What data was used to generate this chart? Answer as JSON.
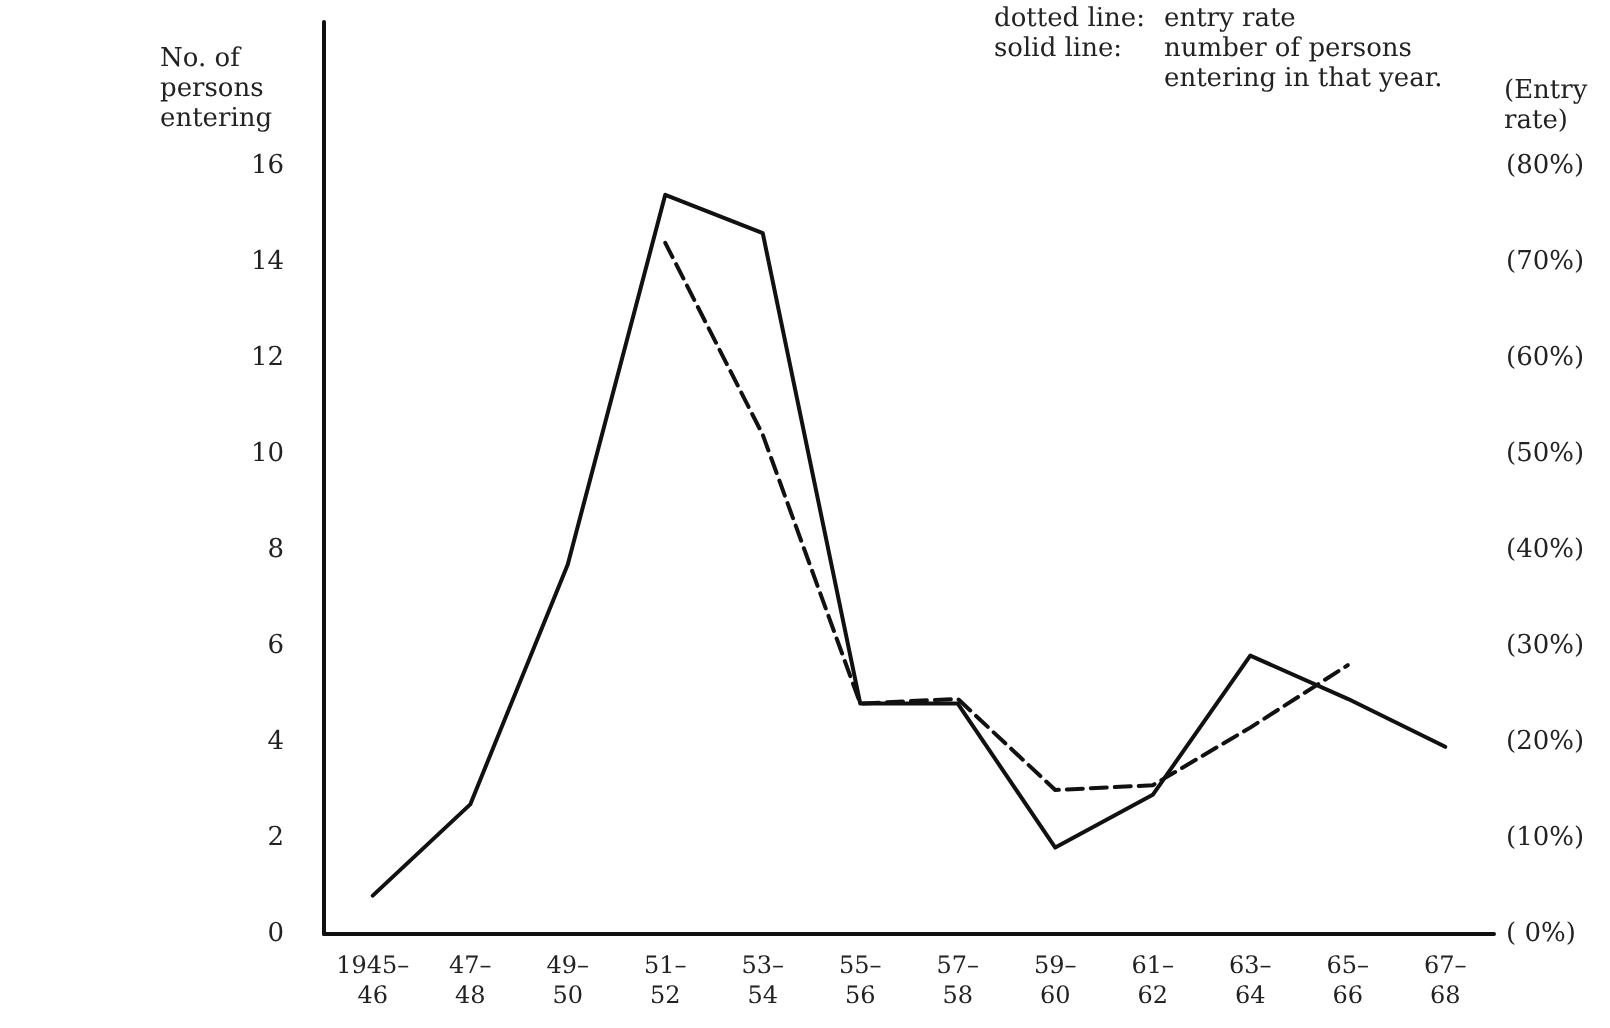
{
  "chart_data": {
    "type": "line",
    "xlabel": null,
    "ylabel": "No. of persons entering",
    "y2label": "(Entry rate)",
    "annotations": [
      "dotted line: entry rate",
      "solid line: number of persons entering in that year."
    ],
    "categories": [
      "1945–46",
      "47–48",
      "49–50",
      "51–52",
      "53–54",
      "55–56",
      "57–58",
      "59–60",
      "61–62",
      "63–64",
      "65–66",
      "67–68"
    ],
    "ylim": [
      0,
      19
    ],
    "yticks": [
      0,
      2,
      4,
      6,
      8,
      10,
      12,
      14,
      16
    ],
    "y2lim": [
      0,
      95
    ],
    "y2ticks": [
      {
        "value": 0,
        "label": "( 0%)"
      },
      {
        "value": 10,
        "label": "(10%)"
      },
      {
        "value": 20,
        "label": "(20%)"
      },
      {
        "value": 30,
        "label": "(30%)"
      },
      {
        "value": 40,
        "label": "(40%)"
      },
      {
        "value": 50,
        "label": "(50%)"
      },
      {
        "value": 60,
        "label": "(60%)"
      },
      {
        "value": 70,
        "label": "(70%)"
      },
      {
        "value": 80,
        "label": "(80%)"
      }
    ],
    "grid": false,
    "marker": "none",
    "series": [
      {
        "color": "#111111",
        "line_style": "solid",
        "values": [
          0.8,
          2.7,
          7.7,
          15.4,
          14.6,
          4.8,
          4.8,
          1.8,
          2.9,
          5.8,
          4.9,
          3.9
        ]
      },
      {
        "color": "#111111",
        "line_style": "dashed",
        "axis": "y2",
        "values": [
          null,
          null,
          null,
          72,
          52,
          24,
          24.5,
          15,
          15.5,
          21.5,
          28,
          null
        ]
      }
    ]
  }
}
